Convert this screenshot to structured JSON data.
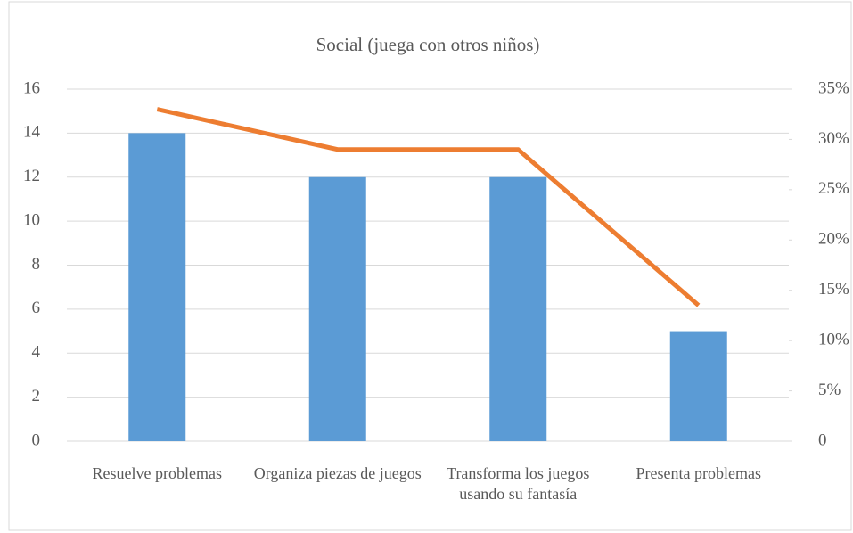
{
  "chart_data": {
    "type": "bar",
    "title": "Social (juega con otros niños)",
    "categories": [
      "Resuelve problemas",
      "Organiza piezas de juegos",
      "Transforma los juegos usando su fantasía",
      "Presenta  problemas"
    ],
    "series": [
      {
        "type": "bar",
        "color": "#5b9bd5",
        "values": [
          14,
          12,
          12,
          5
        ]
      },
      {
        "type": "line",
        "color": "#ed7d31",
        "axis": "y2",
        "values": [
          33,
          29,
          29,
          13.5
        ]
      }
    ],
    "ylim": [
      0,
      16
    ],
    "yticks": [
      0,
      2,
      4,
      6,
      8,
      10,
      12,
      14,
      16
    ],
    "y2lim": [
      0,
      35
    ],
    "y2ticks": [
      0,
      {
        "value": 5,
        "label": "5%"
      },
      {
        "value": 10,
        "label": "10%"
      },
      {
        "value": 15,
        "label": "15%"
      },
      {
        "value": 20,
        "label": "20%"
      },
      {
        "value": 25,
        "label": "25%"
      },
      {
        "value": 30,
        "label": "30%"
      },
      {
        "value": 35,
        "label": "35%"
      }
    ],
    "grid": true
  }
}
